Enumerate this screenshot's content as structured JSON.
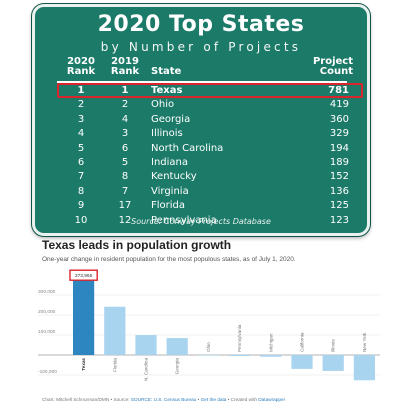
{
  "sign": {
    "title": "2020 Top States",
    "subtitle": "by Number of Projects",
    "headers": {
      "rank_2020": [
        "2020",
        "Rank"
      ],
      "rank_2019": [
        "2019",
        "Rank"
      ],
      "state": "State",
      "count": [
        "Project",
        "Count"
      ]
    },
    "rows": [
      {
        "rank": "1",
        "prev": "1",
        "state": "Texas",
        "count": "781"
      },
      {
        "rank": "2",
        "prev": "2",
        "state": "Ohio",
        "count": "419"
      },
      {
        "rank": "3",
        "prev": "4",
        "state": "Georgia",
        "count": "360"
      },
      {
        "rank": "4",
        "prev": "3",
        "state": "Illinois",
        "count": "329"
      },
      {
        "rank": "5",
        "prev": "6",
        "state": "North Carolina",
        "count": "194"
      },
      {
        "rank": "6",
        "prev": "5",
        "state": "Indiana",
        "count": "189"
      },
      {
        "rank": "7",
        "prev": "8",
        "state": "Kentucky",
        "count": "152"
      },
      {
        "rank": "8",
        "prev": "7",
        "state": "Virginia",
        "count": "136"
      },
      {
        "rank": "9",
        "prev": "17",
        "state": "Florida",
        "count": "125"
      },
      {
        "rank": "10",
        "prev": "12",
        "state": "Pennsylvania",
        "count": "123"
      }
    ],
    "source": "Source: Conway Projects Database",
    "colors": {
      "background": "#1c7a69",
      "highlight": "#d9262c"
    }
  },
  "chart_data": {
    "type": "bar",
    "title": "Texas leads in population growth",
    "subtitle": "One-year change in resident population for the most populous states, as of July 1, 2020.",
    "categories": [
      "Texas",
      "Florida",
      "N. Carolina",
      "Georgia",
      "Ohio",
      "Pennsylvania",
      "Michigan",
      "California",
      "Illinois",
      "New York"
    ],
    "values": [
      373965,
      241256,
      99796,
      84415,
      -1538,
      -5000,
      -8500,
      -69532,
      -79487,
      -126355
    ],
    "value_labels": [
      "373,965",
      "",
      "",
      "",
      "",
      "",
      "",
      "",
      "",
      ""
    ],
    "yticks": [
      300000,
      200000,
      100000,
      0,
      -100000
    ],
    "ytick_labels": [
      "300,000",
      "200,000",
      "100,000",
      "",
      "-100,000"
    ],
    "ylim": [
      -135000,
      395000
    ],
    "grid": true,
    "colors": {
      "highlight": "#2e86c1",
      "others": "#a9d4ef",
      "annotation": "#d9262c"
    }
  },
  "footer": {
    "prefix": "Chart: Mitchell Schnurman/DMN • Source:",
    "source_link": "SOURCE: U.S. Census Bureau",
    "sep1": "•",
    "get_data": "Get the data",
    "sep2": "• Created with",
    "tool": "Datawrapper"
  }
}
